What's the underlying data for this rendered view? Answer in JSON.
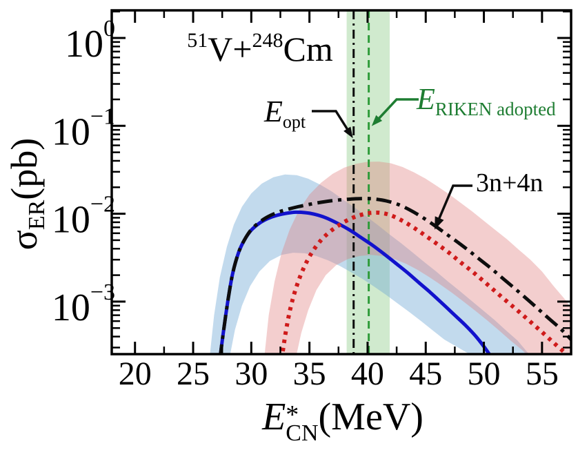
{
  "figure": {
    "title": {
      "sup1": "51",
      "el1": "V",
      "plus": "+",
      "sup2": "248",
      "el2": "Cm"
    },
    "x_label": {
      "base": "E",
      "sup": "*",
      "sub": "CN",
      "unit": "(MeV)"
    },
    "y_label": {
      "base": "σ",
      "sub": "ER",
      "unit": "(pb)"
    },
    "annotations": {
      "e_opt": {
        "main": "E",
        "sub": "opt"
      },
      "e_riken": {
        "main": "E",
        "sub": "RIKEN adopted"
      },
      "channel": "3n+4n"
    },
    "colors": {
      "blue_curve": "#1212cc",
      "red_curve": "#cf1b1b",
      "black_curve": "#0d0d0d",
      "blue_band": "#6da7d4",
      "pink_band": "#e07f7f",
      "green_band": "#55b54f",
      "green_line": "#2f9c3a",
      "green_text": "#1e7d32",
      "axis": "#000000"
    }
  },
  "chart_data": {
    "type": "line",
    "title": "51V+248Cm",
    "xlabel": "E*_CN (MeV)",
    "ylabel": "sigma_ER (pb)",
    "x_scale": "linear",
    "y_scale": "log",
    "x_range": [
      18,
      57.5
    ],
    "y_range": [
      0.00026,
      2.06
    ],
    "x_ticks": [
      20,
      25,
      30,
      35,
      40,
      45,
      50,
      55
    ],
    "x_minor_ticks": [
      22.5,
      27.5,
      32.5,
      37.5,
      42.5,
      47.5,
      52.5,
      57.5
    ],
    "y_ticks": [
      {
        "base": "10",
        "exp": "0",
        "value": 1
      },
      {
        "base": "10",
        "exp": "−1",
        "value": 0.1
      },
      {
        "base": "10",
        "exp": "−2",
        "value": 0.01
      },
      {
        "base": "10",
        "exp": "−3",
        "value": 0.001
      }
    ],
    "markers": {
      "e_opt_line": {
        "x": 38.8,
        "style": "dash-dot",
        "color": "#0d0d0d"
      },
      "e_riken_line": {
        "x": 40.1,
        "style": "dashed",
        "color": "#2f9c3a"
      },
      "e_riken_band": {
        "x_min": 38.2,
        "x_max": 41.9,
        "color": "#55b54f",
        "opacity": 0.28
      }
    },
    "bands": [
      {
        "name": "blue-uncertainty-band",
        "color": "#6da7d4",
        "opacity": 0.42,
        "upper": [
          [
            26.4,
            0.00022
          ],
          [
            26.8,
            0.0007
          ],
          [
            27.3,
            0.0019
          ],
          [
            27.9,
            0.0042
          ],
          [
            28.5,
            0.0075
          ],
          [
            29.2,
            0.012
          ],
          [
            30,
            0.017
          ],
          [
            30.9,
            0.022
          ],
          [
            31.9,
            0.026
          ],
          [
            32.9,
            0.028
          ],
          [
            33.9,
            0.0275
          ],
          [
            34.9,
            0.025
          ],
          [
            35.9,
            0.0215
          ],
          [
            36.9,
            0.018
          ],
          [
            37.9,
            0.0145
          ],
          [
            38.9,
            0.0117
          ],
          [
            39.9,
            0.0093
          ],
          [
            40.9,
            0.0074
          ],
          [
            41.9,
            0.0058
          ],
          [
            42.9,
            0.0046
          ],
          [
            43.9,
            0.0036
          ],
          [
            44.9,
            0.0028
          ],
          [
            45.9,
            0.0022
          ],
          [
            46.9,
            0.0017
          ],
          [
            47.9,
            0.00133
          ],
          [
            48.9,
            0.00103
          ],
          [
            49.9,
            0.0008
          ],
          [
            50.9,
            0.00062
          ],
          [
            51.9,
            0.00047
          ],
          [
            52.9,
            0.00036
          ],
          [
            53.8,
            0.00026
          ],
          [
            54.1,
            0.00022
          ]
        ],
        "lower": [
          [
            28.1,
            0.00022
          ],
          [
            28.6,
            0.00048
          ],
          [
            29.2,
            0.0009
          ],
          [
            29.9,
            0.0015
          ],
          [
            30.7,
            0.0022
          ],
          [
            31.6,
            0.0029
          ],
          [
            32.6,
            0.0034
          ],
          [
            33.6,
            0.0036
          ],
          [
            34.6,
            0.00355
          ],
          [
            35.6,
            0.0033
          ],
          [
            36.6,
            0.00295
          ],
          [
            37.6,
            0.00255
          ],
          [
            38.6,
            0.00215
          ],
          [
            39.6,
            0.0018
          ],
          [
            40.6,
            0.00147
          ],
          [
            41.6,
            0.00119
          ],
          [
            42.6,
            0.00095
          ],
          [
            43.6,
            0.00076
          ],
          [
            44.6,
            0.0006
          ],
          [
            45.6,
            0.00047
          ],
          [
            46.6,
            0.00037
          ],
          [
            47.6,
            0.00031
          ],
          [
            48.6,
            0.00026
          ],
          [
            49.5,
            0.00022
          ]
        ]
      },
      {
        "name": "pink-uncertainty-band",
        "color": "#e07f7f",
        "opacity": 0.38,
        "upper": [
          [
            31.1,
            0.00022
          ],
          [
            31.5,
            0.0007
          ],
          [
            32,
            0.0017
          ],
          [
            32.6,
            0.0036
          ],
          [
            33.3,
            0.0066
          ],
          [
            34.1,
            0.011
          ],
          [
            35,
            0.0165
          ],
          [
            36,
            0.0225
          ],
          [
            37,
            0.0285
          ],
          [
            38,
            0.0335
          ],
          [
            39,
            0.037
          ],
          [
            40,
            0.039
          ],
          [
            41,
            0.0392
          ],
          [
            42,
            0.0375
          ],
          [
            43,
            0.034
          ],
          [
            44,
            0.0295
          ],
          [
            45,
            0.025
          ],
          [
            46,
            0.0205
          ],
          [
            47,
            0.0167
          ],
          [
            48,
            0.0133
          ],
          [
            49,
            0.0106
          ],
          [
            50,
            0.0083
          ],
          [
            51,
            0.0065
          ],
          [
            52,
            0.0051
          ],
          [
            53,
            0.0039
          ],
          [
            54,
            0.003
          ],
          [
            55,
            0.0022
          ],
          [
            56,
            0.0015
          ],
          [
            57,
            0.00105
          ],
          [
            57.5,
            0.00085
          ]
        ],
        "lower": [
          [
            33.8,
            0.00022
          ],
          [
            34.3,
            0.00044
          ],
          [
            34.9,
            0.0008
          ],
          [
            35.6,
            0.00135
          ],
          [
            36.4,
            0.002
          ],
          [
            37.3,
            0.0026
          ],
          [
            38.3,
            0.00305
          ],
          [
            39.3,
            0.0033
          ],
          [
            40.3,
            0.0034
          ],
          [
            41.3,
            0.0033
          ],
          [
            42.3,
            0.00305
          ],
          [
            43.3,
            0.0027
          ],
          [
            44.3,
            0.0023
          ],
          [
            45.3,
            0.0019
          ],
          [
            46.3,
            0.00155
          ],
          [
            47.3,
            0.00125
          ],
          [
            48.3,
            0.00099
          ],
          [
            49.3,
            0.00078
          ],
          [
            50.3,
            0.00061
          ],
          [
            51.3,
            0.00047
          ],
          [
            52.3,
            0.00036
          ],
          [
            53.3,
            0.00028
          ],
          [
            54.1,
            0.00022
          ]
        ]
      }
    ],
    "series": [
      {
        "name": "blue-solid-curve",
        "label": "",
        "color": "#1212cc",
        "style": "solid",
        "width": 5,
        "points": [
          [
            27.3,
            0.00022
          ],
          [
            27.6,
            0.00045
          ],
          [
            28,
            0.00105
          ],
          [
            28.4,
            0.0021
          ],
          [
            28.9,
            0.0036
          ],
          [
            29.4,
            0.005
          ],
          [
            30,
            0.0065
          ],
          [
            30.7,
            0.0078
          ],
          [
            31.4,
            0.0088
          ],
          [
            32.2,
            0.0096
          ],
          [
            33,
            0.0101
          ],
          [
            33.8,
            0.0104
          ],
          [
            34.6,
            0.0103
          ],
          [
            35.4,
            0.0099
          ],
          [
            36.4,
            0.009
          ],
          [
            37.4,
            0.0078
          ],
          [
            38.4,
            0.0066
          ],
          [
            39.4,
            0.0054
          ],
          [
            40.4,
            0.0044
          ],
          [
            41.4,
            0.0035
          ],
          [
            42.4,
            0.00275
          ],
          [
            43.4,
            0.00215
          ],
          [
            44.4,
            0.00165
          ],
          [
            45.4,
            0.00127
          ],
          [
            46.4,
            0.00096
          ],
          [
            47.4,
            0.00072
          ],
          [
            48.4,
            0.00054
          ],
          [
            49.4,
            0.00039
          ],
          [
            50.4,
            0.00026
          ],
          [
            50.7,
            0.00022
          ]
        ]
      },
      {
        "name": "red-dotted-curve",
        "label": "",
        "color": "#cf1b1b",
        "style": "dotted",
        "width": 6,
        "points": [
          [
            32.6,
            0.00022
          ],
          [
            33,
            0.00048
          ],
          [
            33.4,
            0.00088
          ],
          [
            33.9,
            0.0015
          ],
          [
            34.5,
            0.0024
          ],
          [
            35.2,
            0.0036
          ],
          [
            36,
            0.005
          ],
          [
            36.8,
            0.0063
          ],
          [
            37.6,
            0.0075
          ],
          [
            38.4,
            0.0086
          ],
          [
            39.2,
            0.0095
          ],
          [
            40,
            0.0101
          ],
          [
            40.6,
            0.0103
          ],
          [
            41.2,
            0.0102
          ],
          [
            42,
            0.0096
          ],
          [
            43,
            0.0083
          ],
          [
            44,
            0.0069
          ],
          [
            45,
            0.0056
          ],
          [
            46,
            0.0045
          ],
          [
            47,
            0.0036
          ],
          [
            48,
            0.0028
          ],
          [
            49,
            0.0022
          ],
          [
            50,
            0.0017
          ],
          [
            51,
            0.0013
          ],
          [
            52,
            0.001
          ],
          [
            53,
            0.00077
          ],
          [
            54,
            0.00059
          ],
          [
            55,
            0.00045
          ],
          [
            56,
            0.00034
          ],
          [
            57,
            0.00026
          ],
          [
            57.5,
            0.00023
          ]
        ]
      },
      {
        "name": "black-dash-dot-curve",
        "label": "3n+4n",
        "color": "#0d0d0d",
        "style": "dash-dot",
        "width": 5,
        "points": [
          [
            27.3,
            0.00022
          ],
          [
            27.6,
            0.00045
          ],
          [
            28,
            0.00105
          ],
          [
            28.4,
            0.0021
          ],
          [
            28.9,
            0.0036
          ],
          [
            29.4,
            0.005
          ],
          [
            30,
            0.0066
          ],
          [
            30.7,
            0.008
          ],
          [
            31.4,
            0.0092
          ],
          [
            32.2,
            0.0103
          ],
          [
            33,
            0.0111
          ],
          [
            34,
            0.012
          ],
          [
            35,
            0.0128
          ],
          [
            36,
            0.0135
          ],
          [
            37,
            0.0141
          ],
          [
            38,
            0.0145
          ],
          [
            39,
            0.0148
          ],
          [
            39.8,
            0.0149
          ],
          [
            40.6,
            0.0147
          ],
          [
            41.6,
            0.014
          ],
          [
            42.6,
            0.0128
          ],
          [
            43.6,
            0.0111
          ],
          [
            44.6,
            0.0093
          ],
          [
            45.6,
            0.0076
          ],
          [
            46.6,
            0.0061
          ],
          [
            47.6,
            0.0049
          ],
          [
            48.6,
            0.0039
          ],
          [
            49.6,
            0.00305
          ],
          [
            50.6,
            0.0024
          ],
          [
            51.6,
            0.00185
          ],
          [
            52.6,
            0.00143
          ],
          [
            53.6,
            0.0011
          ],
          [
            54.6,
            0.00084
          ],
          [
            55.6,
            0.00064
          ],
          [
            56.6,
            0.00049
          ],
          [
            57.5,
            0.00037
          ]
        ]
      }
    ]
  }
}
